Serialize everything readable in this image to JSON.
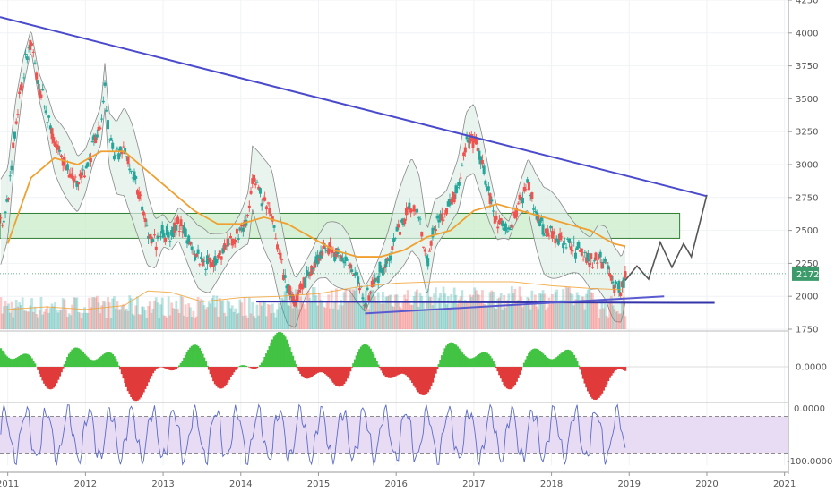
{
  "chart_data": {
    "type": "candlestick",
    "symbol_current_price": "2172",
    "price_axis": {
      "ylim": [
        1750,
        4250
      ],
      "ticks": [
        "4250",
        "4000",
        "3750",
        "3500",
        "3250",
        "3000",
        "2750",
        "2500",
        "2250",
        "2000",
        "1750"
      ]
    },
    "time_axis": {
      "xlim": [
        2010.9,
        2021.05
      ],
      "ticks": [
        "2011",
        "2012",
        "2013",
        "2014",
        "2015",
        "2016",
        "2017",
        "2018",
        "2019",
        "2020",
        "2021"
      ]
    },
    "price_series_approx": [
      [
        2010.9,
        2550
      ],
      [
        2011.0,
        2700
      ],
      [
        2011.1,
        3300
      ],
      [
        2011.2,
        3700
      ],
      [
        2011.3,
        3950
      ],
      [
        2011.4,
        3600
      ],
      [
        2011.5,
        3400
      ],
      [
        2011.6,
        3150
      ],
      [
        2011.75,
        3000
      ],
      [
        2011.9,
        2850
      ],
      [
        2012.0,
        2950
      ],
      [
        2012.1,
        3150
      ],
      [
        2012.2,
        3300
      ],
      [
        2012.25,
        3600
      ],
      [
        2012.3,
        3200
      ],
      [
        2012.4,
        3050
      ],
      [
        2012.5,
        3100
      ],
      [
        2012.6,
        2950
      ],
      [
        2012.7,
        2750
      ],
      [
        2012.8,
        2500
      ],
      [
        2012.9,
        2400
      ],
      [
        2013.0,
        2500
      ],
      [
        2013.1,
        2450
      ],
      [
        2013.2,
        2550
      ],
      [
        2013.3,
        2450
      ],
      [
        2013.45,
        2300
      ],
      [
        2013.6,
        2250
      ],
      [
        2013.8,
        2350
      ],
      [
        2014.0,
        2500
      ],
      [
        2014.1,
        2600
      ],
      [
        2014.15,
        2900
      ],
      [
        2014.3,
        2700
      ],
      [
        2014.4,
        2600
      ],
      [
        2014.5,
        2300
      ],
      [
        2014.6,
        2050
      ],
      [
        2014.7,
        1950
      ],
      [
        2014.85,
        2150
      ],
      [
        2015.0,
        2300
      ],
      [
        2015.1,
        2350
      ],
      [
        2015.3,
        2300
      ],
      [
        2015.4,
        2250
      ],
      [
        2015.5,
        2100
      ],
      [
        2015.6,
        1980
      ],
      [
        2015.75,
        2150
      ],
      [
        2015.9,
        2300
      ],
      [
        2016.0,
        2450
      ],
      [
        2016.2,
        2700
      ],
      [
        2016.3,
        2600
      ],
      [
        2016.4,
        2250
      ],
      [
        2016.5,
        2550
      ],
      [
        2016.65,
        2650
      ],
      [
        2016.8,
        2850
      ],
      [
        2016.9,
        3150
      ],
      [
        2017.0,
        3200
      ],
      [
        2017.1,
        3000
      ],
      [
        2017.2,
        2750
      ],
      [
        2017.3,
        2550
      ],
      [
        2017.45,
        2500
      ],
      [
        2017.6,
        2750
      ],
      [
        2017.7,
        2850
      ],
      [
        2017.8,
        2650
      ],
      [
        2017.9,
        2500
      ],
      [
        2018.05,
        2450
      ],
      [
        2018.2,
        2400
      ],
      [
        2018.35,
        2350
      ],
      [
        2018.5,
        2250
      ],
      [
        2018.6,
        2300
      ],
      [
        2018.7,
        2250
      ],
      [
        2018.8,
        2100
      ],
      [
        2018.9,
        2050
      ],
      [
        2018.95,
        2172
      ]
    ],
    "moving_average_approx": [
      [
        2011.0,
        2400
      ],
      [
        2011.3,
        2900
      ],
      [
        2011.6,
        3050
      ],
      [
        2011.9,
        3000
      ],
      [
        2012.2,
        3100
      ],
      [
        2012.5,
        3100
      ],
      [
        2012.8,
        2950
      ],
      [
        2013.1,
        2800
      ],
      [
        2013.4,
        2650
      ],
      [
        2013.7,
        2550
      ],
      [
        2014.0,
        2550
      ],
      [
        2014.3,
        2600
      ],
      [
        2014.6,
        2550
      ],
      [
        2014.9,
        2450
      ],
      [
        2015.2,
        2350
      ],
      [
        2015.5,
        2300
      ],
      [
        2015.8,
        2300
      ],
      [
        2016.1,
        2350
      ],
      [
        2016.4,
        2450
      ],
      [
        2016.7,
        2500
      ],
      [
        2017.0,
        2650
      ],
      [
        2017.3,
        2700
      ],
      [
        2017.6,
        2650
      ],
      [
        2017.9,
        2600
      ],
      [
        2018.2,
        2550
      ],
      [
        2018.5,
        2500
      ],
      [
        2018.8,
        2400
      ],
      [
        2018.95,
        2380
      ]
    ],
    "volume_ma_approx": [
      [
        2011.0,
        1900
      ],
      [
        2011.5,
        1920
      ],
      [
        2012.0,
        1900
      ],
      [
        2012.5,
        1930
      ],
      [
        2012.8,
        2040
      ],
      [
        2013.1,
        2030
      ],
      [
        2013.5,
        1960
      ],
      [
        2014.0,
        1990
      ],
      [
        2014.5,
        2000
      ],
      [
        2015.0,
        2020
      ],
      [
        2015.5,
        2070
      ],
      [
        2016.0,
        2100
      ],
      [
        2016.5,
        2110
      ],
      [
        2017.0,
        2110
      ],
      [
        2017.5,
        2110
      ],
      [
        2018.0,
        2080
      ],
      [
        2018.5,
        2060
      ],
      [
        2018.9,
        2050
      ]
    ],
    "trendlines": [
      {
        "name": "descending resistance",
        "from": [
          2010.9,
          4120
        ],
        "to": [
          2020.0,
          2760
        ],
        "color": "#4a4acc"
      },
      {
        "name": "horizontal support",
        "from": [
          2014.2,
          1960
        ],
        "to": [
          2020.1,
          1950
        ],
        "color": "#3333aa"
      },
      {
        "name": "rising support",
        "from": [
          2015.6,
          1870
        ],
        "to": [
          2019.45,
          2000
        ],
        "color": "#5a5ad0"
      }
    ],
    "zone": {
      "from_x": 2010.9,
      "to_x": 2019.65,
      "y_low": 2440,
      "y_high": 2630,
      "color": "#c9ecc9"
    },
    "projection_path": [
      [
        2018.95,
        2120
      ],
      [
        2019.1,
        2230
      ],
      [
        2019.25,
        2130
      ],
      [
        2019.4,
        2410
      ],
      [
        2019.55,
        2220
      ],
      [
        2019.7,
        2400
      ],
      [
        2019.8,
        2300
      ],
      [
        2020.0,
        2770
      ]
    ],
    "lower_panels": [
      {
        "name": "momentum histogram",
        "zero_label": "0.0000",
        "range": [
          -1,
          1
        ]
      },
      {
        "name": "oscillator",
        "ylim": [
          -100,
          0
        ],
        "ticks": [
          "0.0000",
          "-100.0000"
        ],
        "band": [
          -20,
          -80
        ]
      }
    ],
    "colors": {
      "up": "#26a69a",
      "down": "#ef5350",
      "bb_fill": "#dff0e8",
      "bb_line": "#888888",
      "ma": "#f0a030",
      "hist_up": "#43c343",
      "hist_down": "#e03a3a",
      "osc_band": "#e8dcf5",
      "osc_line": "#5b6bc6",
      "price_badge": "#3d9a6a"
    }
  }
}
